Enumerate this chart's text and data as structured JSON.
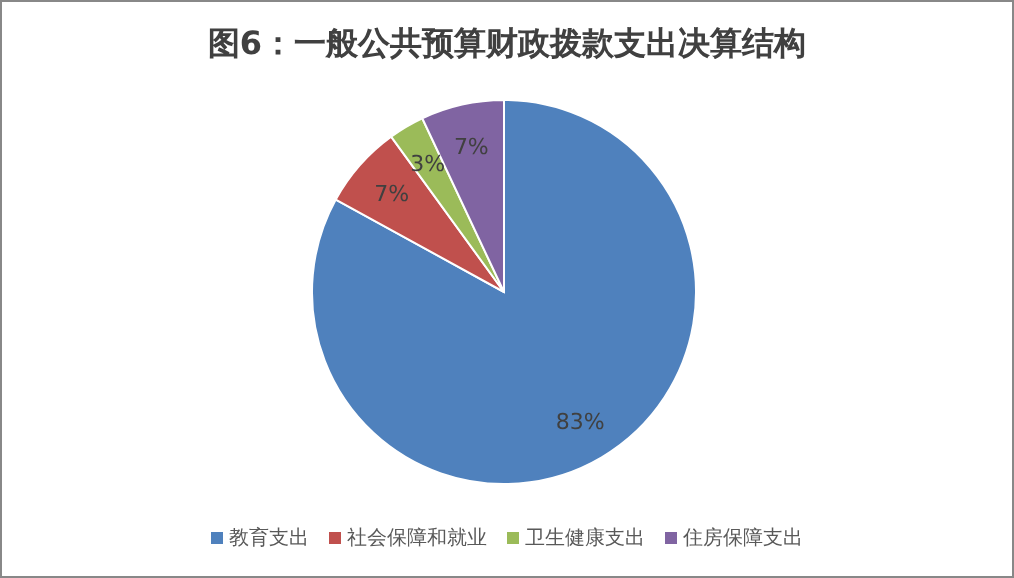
{
  "chart_data": {
    "type": "pie",
    "title": "图6：一般公共预算财政拨款支出决算结构",
    "categories": [
      "教育支出",
      "社会保障和就业",
      "卫生健康支出",
      "住房保障支出"
    ],
    "values": [
      83,
      7,
      3,
      7
    ],
    "value_labels": [
      "83%",
      "7%",
      "3%",
      "7%"
    ],
    "colors": [
      "#4f81bd",
      "#c0504d",
      "#9bbb59",
      "#8064a2"
    ],
    "legend": "bottom"
  }
}
